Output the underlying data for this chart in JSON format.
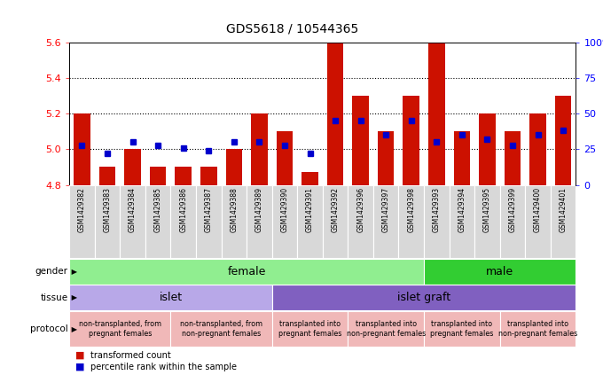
{
  "title": "GDS5618 / 10544365",
  "samples": [
    "GSM1429382",
    "GSM1429383",
    "GSM1429384",
    "GSM1429385",
    "GSM1429386",
    "GSM1429387",
    "GSM1429388",
    "GSM1429389",
    "GSM1429390",
    "GSM1429391",
    "GSM1429392",
    "GSM1429396",
    "GSM1429397",
    "GSM1429398",
    "GSM1429393",
    "GSM1429394",
    "GSM1429395",
    "GSM1429399",
    "GSM1429400",
    "GSM1429401"
  ],
  "red_values": [
    5.2,
    4.9,
    5.0,
    4.9,
    4.9,
    4.9,
    5.0,
    5.2,
    5.1,
    4.87,
    5.6,
    5.3,
    5.1,
    5.3,
    5.6,
    5.1,
    5.2,
    5.1,
    5.2,
    5.3
  ],
  "blue_percentiles": [
    28,
    22,
    30,
    28,
    26,
    24,
    30,
    30,
    28,
    22,
    45,
    45,
    35,
    45,
    30,
    35,
    32,
    28,
    35,
    38
  ],
  "ymin": 4.8,
  "ymax": 5.6,
  "yticks_left": [
    4.8,
    5.0,
    5.2,
    5.4,
    5.6
  ],
  "yticks_right": [
    0,
    25,
    50,
    75,
    100
  ],
  "bar_color": "#cc1100",
  "marker_color": "#0000cc",
  "gender_groups": [
    {
      "label": "female",
      "start": 0,
      "end": 14,
      "color": "#90ee90"
    },
    {
      "label": "male",
      "start": 14,
      "end": 20,
      "color": "#32cd32"
    }
  ],
  "tissue_groups": [
    {
      "label": "islet",
      "start": 0,
      "end": 8,
      "color": "#b8a8e8"
    },
    {
      "label": "islet graft",
      "start": 8,
      "end": 20,
      "color": "#8060c0"
    }
  ],
  "protocol_groups": [
    {
      "label": "non-transplanted, from\npregnant females",
      "start": 0,
      "end": 4,
      "color": "#f0b8b8"
    },
    {
      "label": "non-transplanted, from\nnon-pregnant females",
      "start": 4,
      "end": 8,
      "color": "#f0b8b8"
    },
    {
      "label": "transplanted into\npregnant females",
      "start": 8,
      "end": 11,
      "color": "#f0b8b8"
    },
    {
      "label": "transplanted into\nnon-pregnant females",
      "start": 11,
      "end": 14,
      "color": "#f0b8b8"
    },
    {
      "label": "transplanted into\npregnant females",
      "start": 14,
      "end": 17,
      "color": "#f0b8b8"
    },
    {
      "label": "transplanted into\nnon-pregnant females",
      "start": 17,
      "end": 20,
      "color": "#f0b8b8"
    }
  ],
  "legend_red": "transformed count",
  "legend_blue": "percentile rank within the sample"
}
